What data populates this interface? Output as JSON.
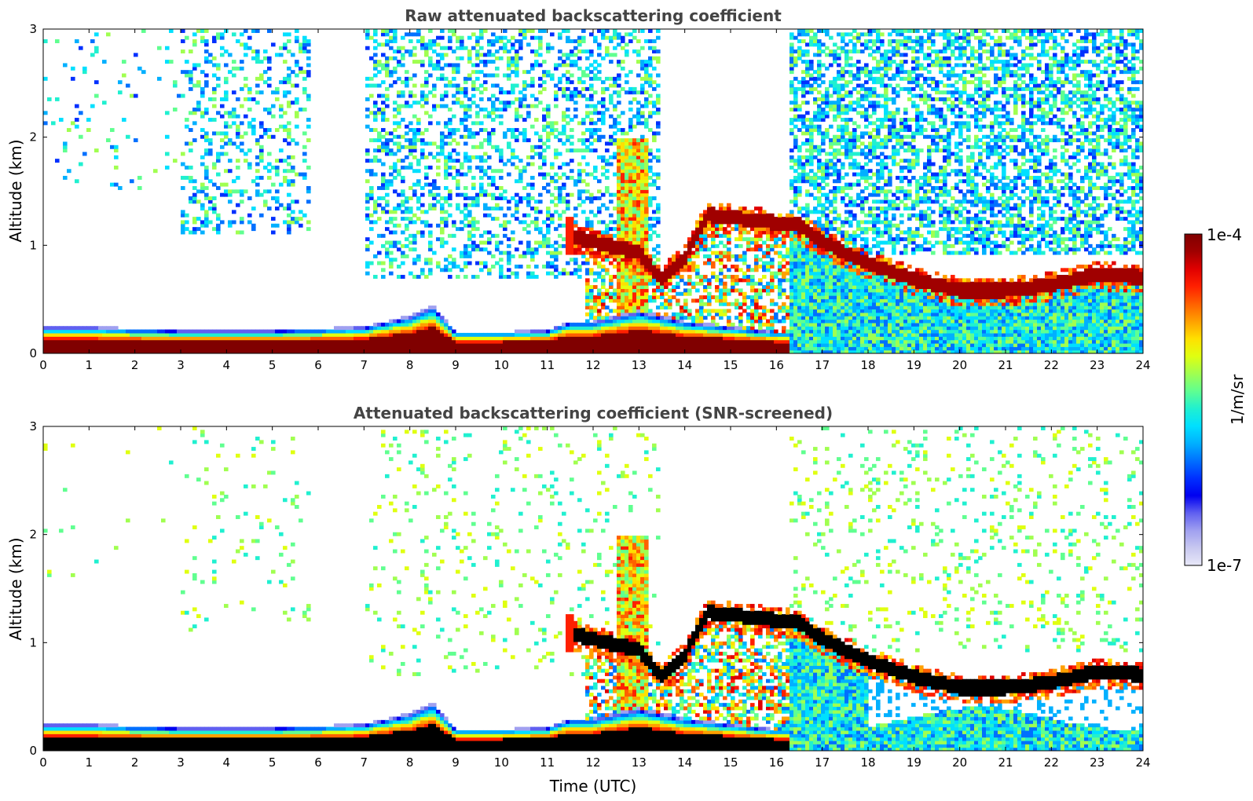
{
  "chart_data": [
    {
      "type": "heatmap",
      "title": "Raw attenuated backscattering coefficient",
      "xlabel": "",
      "ylabel": "Altitude (km)",
      "xlim": [
        0,
        24
      ],
      "ylim": [
        0,
        3
      ],
      "x_ticks": [
        "0",
        "1",
        "2",
        "3",
        "4",
        "5",
        "6",
        "7",
        "8",
        "9",
        "10",
        "11",
        "12",
        "13",
        "14",
        "15",
        "16",
        "17",
        "18",
        "19",
        "20",
        "21",
        "22",
        "23",
        "24"
      ],
      "y_ticks": [
        "0",
        "1",
        "2",
        "3"
      ],
      "scale": "log",
      "colormap": "jet",
      "layers": {
        "surface_layer": {
          "x": [
            0,
            1,
            2,
            3,
            4,
            5,
            6,
            7,
            8,
            8.5,
            9,
            10,
            11,
            11.5,
            12,
            13,
            14,
            15,
            16,
            16.3
          ],
          "top_km": [
            0.25,
            0.25,
            0.23,
            0.22,
            0.22,
            0.22,
            0.23,
            0.25,
            0.35,
            0.45,
            0.2,
            0.2,
            0.22,
            0.3,
            0.3,
            0.4,
            0.3,
            0.25,
            0.2,
            0.2
          ]
        },
        "cloud_base": {
          "x": [
            11.5,
            12,
            12.5,
            13,
            13.5,
            14,
            14.5,
            16.5,
            17,
            17.5,
            18,
            19,
            20,
            21,
            22,
            23,
            24
          ],
          "base_km": [
            1.1,
            1.05,
            1.0,
            0.95,
            0.7,
            0.9,
            1.3,
            1.2,
            1.05,
            0.95,
            0.85,
            0.7,
            0.6,
            0.6,
            0.65,
            0.75,
            0.72
          ]
        }
      }
    },
    {
      "type": "heatmap",
      "title": "Attenuated backscattering coefficient (SNR-screened)",
      "xlabel": "Time (UTC)",
      "ylabel": "Altitude (km)",
      "xlim": [
        0,
        24
      ],
      "ylim": [
        0,
        3
      ],
      "x_ticks": [
        "0",
        "1",
        "2",
        "3",
        "4",
        "5",
        "6",
        "7",
        "8",
        "9",
        "10",
        "11",
        "12",
        "13",
        "14",
        "15",
        "16",
        "17",
        "18",
        "19",
        "20",
        "21",
        "22",
        "23",
        "24"
      ],
      "y_ticks": [
        "0",
        "1",
        "2",
        "3"
      ],
      "scale": "log",
      "colormap": "jet"
    }
  ],
  "colorbar": {
    "max_label": "1e-4",
    "min_label": "1e-7",
    "unit_label": "1/m/sr",
    "colors": [
      "#e8e8f8",
      "#c8c8f0",
      "#a0a0f0",
      "#6060f0",
      "#0000f0",
      "#0030ff",
      "#0070ff",
      "#00b0ff",
      "#00e0ff",
      "#20f0d0",
      "#60ff90",
      "#a0ff50",
      "#e0ff10",
      "#ffe000",
      "#ffa000",
      "#ff6000",
      "#ff2000",
      "#e00000",
      "#a00000",
      "#800000"
    ]
  }
}
